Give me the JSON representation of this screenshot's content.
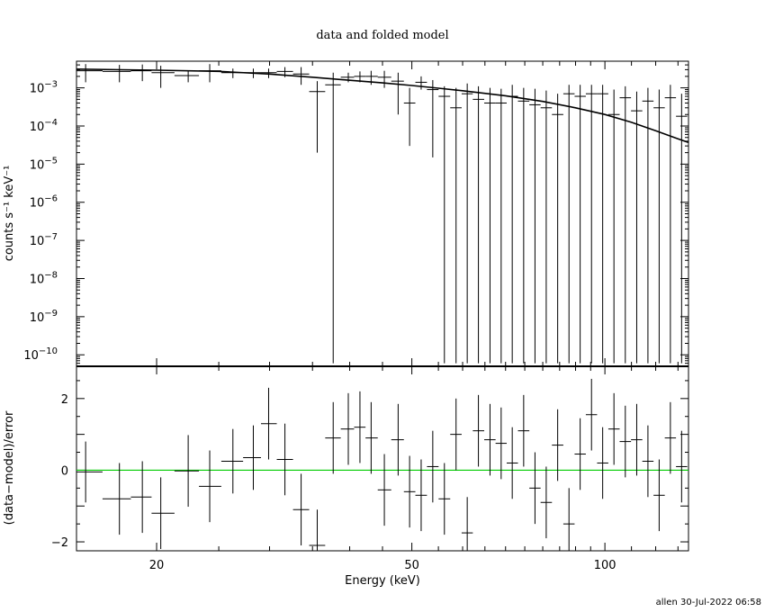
{
  "chart_data": [
    {
      "type": "scatter",
      "title": "data and folded model",
      "xlabel": "",
      "ylabel": "counts s⁻¹ keV⁻¹",
      "xscale": "log",
      "yscale": "log",
      "xlim": [
        15,
        135
      ],
      "ylim": [
        5e-11,
        0.005
      ],
      "grid": false,
      "y_ticks": [
        {
          "value": 1e-10,
          "base": "10",
          "exp": "−10"
        },
        {
          "value": 1e-09,
          "base": "10",
          "exp": "−9"
        },
        {
          "value": 1e-08,
          "base": "10",
          "exp": "−8"
        },
        {
          "value": 1e-07,
          "base": "10",
          "exp": "−7"
        },
        {
          "value": 1e-06,
          "base": "10",
          "exp": "−6"
        },
        {
          "value": 1e-05,
          "base": "10",
          "exp": "−5"
        },
        {
          "value": 0.0001,
          "base": "10",
          "exp": "−4"
        },
        {
          "value": 0.001,
          "base": "10",
          "exp": "−3"
        }
      ],
      "series": [
        {
          "kind": "data-crosses",
          "x": [
            15.5,
            17.5,
            19.0,
            20.3,
            22.4,
            24.2,
            26.3,
            28.3,
            29.9,
            31.7,
            33.6,
            35.6,
            37.7,
            39.8,
            41.5,
            43.2,
            45.3,
            47.6,
            49.6,
            51.7,
            53.9,
            56.2,
            58.6,
            61.0,
            63.5,
            66.2,
            68.9,
            71.7,
            74.7,
            77.8,
            81.0,
            84.4,
            87.9,
            91.5,
            95.3,
            99.2,
            103.3,
            107.6,
            112.1,
            116.7,
            121.5,
            126.5,
            131.7
          ],
          "y": [
            0.0028,
            0.0027,
            0.0028,
            0.0025,
            0.0021,
            0.0028,
            0.0025,
            0.0025,
            0.0025,
            0.0027,
            0.0023,
            0.0008,
            0.0012,
            0.0019,
            0.002,
            0.002,
            0.0019,
            0.0015,
            0.0004,
            0.0014,
            0.0009,
            0.0006,
            0.0003,
            0.0007,
            0.0005,
            0.0004,
            0.0004,
            0.0006,
            0.00045,
            0.00036,
            0.0003,
            0.0002,
            0.0007,
            0.0006,
            0.0007,
            0.0007,
            0.0002,
            0.00055,
            0.00025,
            0.00045,
            0.0003,
            0.00055,
            0.00018
          ],
          "y_low": [
            0.0014,
            0.0014,
            0.0015,
            0.001,
            0.0014,
            0.0014,
            0.0018,
            0.0018,
            0.0018,
            0.0019,
            0.0012,
            2e-05,
            6e-11,
            0.0014,
            0.0014,
            0.0012,
            0.001,
            0.0002,
            3e-05,
            0.0009,
            1.5e-05,
            6e-11,
            6e-11,
            6e-11,
            6e-11,
            6e-11,
            6e-11,
            6e-11,
            6e-11,
            6e-11,
            6e-11,
            6e-11,
            6e-11,
            6e-11,
            6e-11,
            6e-11,
            6e-11,
            6e-11,
            6e-11,
            6e-11,
            6e-11,
            6e-11,
            6e-11
          ],
          "y_high": [
            0.0042,
            0.004,
            0.0041,
            0.0038,
            0.0028,
            0.0042,
            0.0032,
            0.0032,
            0.0032,
            0.0035,
            0.0035,
            0.0015,
            0.0025,
            0.0025,
            0.0027,
            0.0028,
            0.0028,
            0.0025,
            0.001,
            0.002,
            0.0016,
            0.0011,
            0.001,
            0.0013,
            0.0011,
            0.001,
            0.00095,
            0.0012,
            0.001,
            0.00095,
            0.00085,
            0.0007,
            0.0012,
            0.0012,
            0.0012,
            0.0012,
            0.0009,
            0.0011,
            0.0008,
            0.001,
            0.0009,
            0.0012,
            0.0007
          ]
        },
        {
          "kind": "model-step",
          "x": [
            15,
            20,
            25,
            30,
            35,
            40,
            45,
            50,
            55,
            60,
            70,
            80,
            90,
            100,
            110,
            120,
            130,
            135
          ],
          "y": [
            0.0031,
            0.0029,
            0.0027,
            0.0023,
            0.0019,
            0.00158,
            0.00135,
            0.00115,
            0.00098,
            0.00084,
            0.00062,
            0.00044,
            0.0003,
            0.0002,
            0.000125,
            7.5e-05,
            4.6e-05,
            3.7e-05
          ]
        }
      ]
    },
    {
      "type": "scatter",
      "title": "",
      "xlabel": "Energy (keV)",
      "ylabel": "(data−model)/error",
      "xscale": "log",
      "xlim": [
        15,
        135
      ],
      "ylim": [
        -2.25,
        2.9
      ],
      "grid": false,
      "x_ticks": [
        {
          "value": 20,
          "label": "20"
        },
        {
          "value": 50,
          "label": "50"
        },
        {
          "value": 100,
          "label": "100"
        }
      ],
      "y_ticks": [
        {
          "value": -2,
          "label": "−2"
        },
        {
          "value": 0,
          "label": "0"
        },
        {
          "value": 2,
          "label": "2"
        }
      ],
      "reference_line": {
        "y": 0,
        "color": "#00cc00"
      },
      "series": [
        {
          "kind": "residual-crosses",
          "x": [
            15.5,
            17.5,
            19.0,
            20.3,
            22.4,
            24.2,
            26.3,
            28.3,
            29.9,
            31.7,
            33.6,
            35.6,
            37.7,
            39.8,
            41.5,
            43.2,
            45.3,
            47.6,
            49.6,
            51.7,
            53.9,
            56.2,
            58.6,
            61.0,
            63.5,
            66.2,
            68.9,
            71.7,
            74.7,
            77.8,
            81.0,
            84.4,
            87.9,
            91.5,
            95.3,
            99.2,
            103.3,
            107.6,
            112.1,
            116.7,
            121.5,
            126.5,
            131.7
          ],
          "y": [
            -0.05,
            -0.8,
            -0.75,
            -1.2,
            -0.02,
            -0.45,
            0.25,
            0.35,
            1.3,
            0.3,
            -1.1,
            -2.1,
            0.9,
            1.15,
            1.2,
            0.9,
            -0.55,
            0.85,
            -0.6,
            -0.7,
            0.1,
            -0.8,
            1.0,
            -1.75,
            1.1,
            0.85,
            0.75,
            0.2,
            1.1,
            -0.5,
            -0.9,
            0.7,
            -1.5,
            0.45,
            1.55,
            0.2,
            1.15,
            0.8,
            0.85,
            0.25,
            -0.7,
            0.9,
            0.1
          ],
          "err": [
            0.85,
            1.0,
            1.0,
            1.0,
            1.0,
            1.0,
            0.9,
            0.9,
            1.0,
            1.0,
            1.0,
            1.0,
            1.0,
            1.0,
            1.0,
            1.0,
            1.0,
            1.0,
            1.0,
            1.0,
            1.0,
            1.0,
            1.0,
            1.0,
            1.0,
            1.0,
            1.0,
            1.0,
            1.0,
            1.0,
            1.0,
            1.0,
            1.0,
            1.0,
            1.0,
            1.0,
            1.0,
            1.0,
            1.0,
            1.0,
            1.0,
            1.0,
            1.0
          ]
        }
      ]
    }
  ],
  "footer": {
    "text": "allen 30-Jul-2022 06:58"
  }
}
